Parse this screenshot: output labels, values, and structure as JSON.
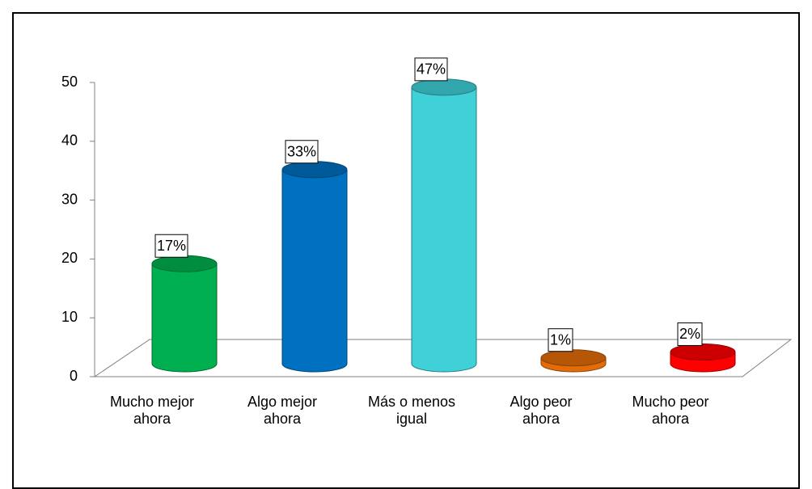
{
  "chart_data": {
    "type": "bar",
    "categories": [
      "Mucho mejor ahora",
      "Algo mejor ahora",
      "Más o menos igual",
      "Algo peor ahora",
      "Mucho peor ahora"
    ],
    "values": [
      17,
      33,
      47,
      1,
      2
    ],
    "value_labels": [
      "17%",
      "33%",
      "47%",
      "1%",
      "2%"
    ],
    "colors": [
      "#00b050",
      "#0070c0",
      "#3fd0d8",
      "#e36c09",
      "#ff0000"
    ],
    "ylim": [
      0,
      50
    ],
    "yticks": [
      0,
      10,
      20,
      30,
      40,
      50
    ],
    "grid": false
  }
}
